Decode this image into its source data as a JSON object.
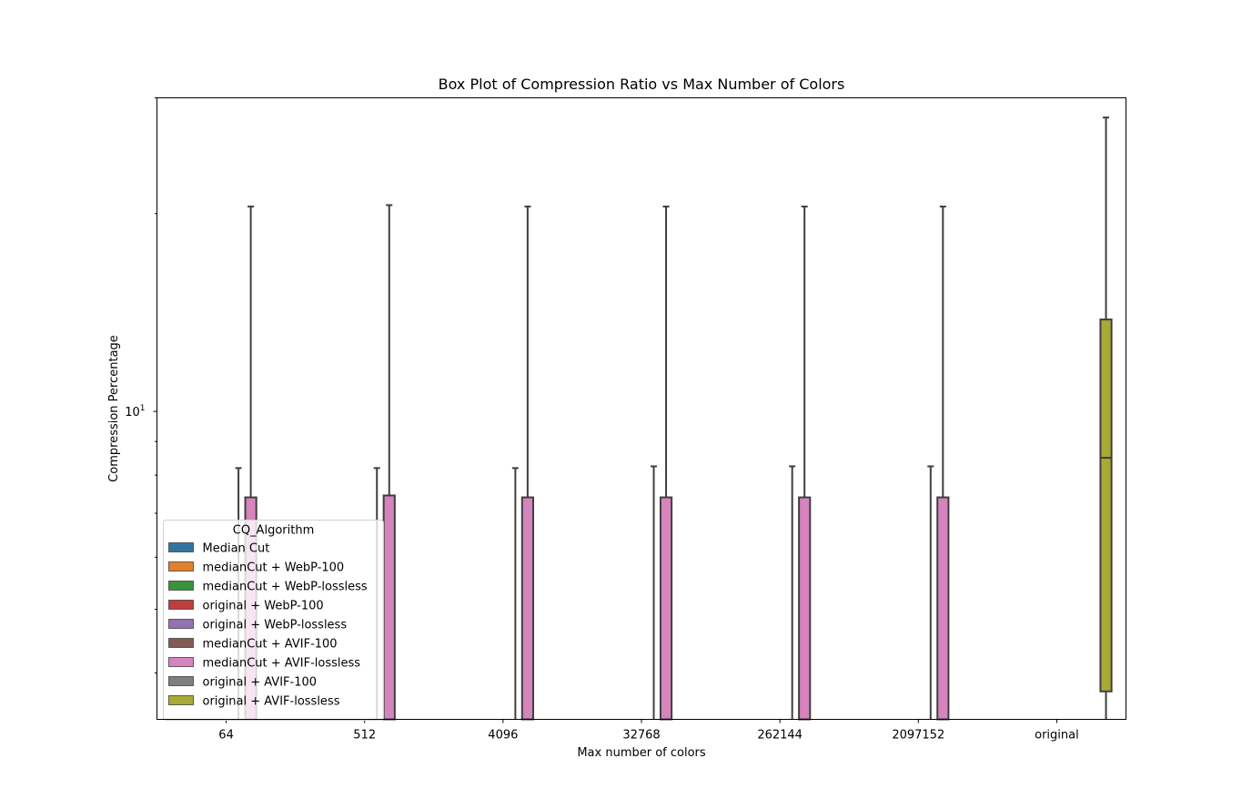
{
  "chart_data": {
    "type": "box",
    "title": "Box Plot of Compression Ratio vs Max Number of Colors",
    "xlabel": "Max number of colors",
    "ylabel": "Compression Percentage",
    "yscale": "log",
    "ylim": [
      3.4,
      30
    ],
    "ytick_major": {
      "value": 10,
      "base": "10",
      "exponent": "1"
    },
    "ytick_minor": [
      4,
      5,
      6,
      7,
      8,
      9,
      20,
      30
    ],
    "categories": [
      "64",
      "512",
      "4096",
      "32768",
      "262144",
      "2097152",
      "original"
    ],
    "legend": {
      "title": "CQ_Algorithm",
      "location": "lower-left",
      "entries": [
        {
          "name": "Median Cut",
          "color": "#3274a1"
        },
        {
          "name": "medianCut + WebP-100",
          "color": "#e1812c"
        },
        {
          "name": "medianCut + WebP-lossless",
          "color": "#3a923a"
        },
        {
          "name": "original + WebP-100",
          "color": "#c03d3e"
        },
        {
          "name": "original + WebP-lossless",
          "color": "#9372b2"
        },
        {
          "name": "medianCut + AVIF-100",
          "color": "#845b53"
        },
        {
          "name": "medianCut + AVIF-lossless",
          "color": "#d684bd"
        },
        {
          "name": "original + AVIF-100",
          "color": "#7f7f7f"
        },
        {
          "name": "original + AVIF-lossless",
          "color": "#a9aa35"
        }
      ]
    },
    "series": [
      {
        "name": "medianCut + AVIF-100",
        "color": "#845b53",
        "boxes": [
          {
            "category": "64",
            "whisker_high": 8.2
          },
          {
            "category": "512",
            "whisker_high": 8.2
          },
          {
            "category": "4096",
            "whisker_high": 8.2
          },
          {
            "category": "32768",
            "whisker_high": 8.25
          },
          {
            "category": "262144",
            "whisker_high": 8.25
          },
          {
            "category": "2097152",
            "whisker_high": 8.25
          }
        ]
      },
      {
        "name": "medianCut + AVIF-lossless",
        "color": "#d684bd",
        "boxes": [
          {
            "category": "64",
            "q3": 7.4,
            "whisker_high": 20.5
          },
          {
            "category": "512",
            "q3": 7.45,
            "whisker_high": 20.6
          },
          {
            "category": "4096",
            "q3": 7.4,
            "whisker_high": 20.5
          },
          {
            "category": "32768",
            "q3": 7.4,
            "whisker_high": 20.5
          },
          {
            "category": "262144",
            "q3": 7.4,
            "whisker_high": 20.5
          },
          {
            "category": "2097152",
            "q3": 7.4,
            "whisker_high": 20.5
          }
        ]
      },
      {
        "name": "original + AVIF-lossless",
        "color": "#a9aa35",
        "boxes": [
          {
            "category": "original",
            "whisker_low": 3.4,
            "q1": 3.75,
            "median": 8.5,
            "q3": 13.8,
            "whisker_high": 28.0
          }
        ]
      }
    ]
  }
}
